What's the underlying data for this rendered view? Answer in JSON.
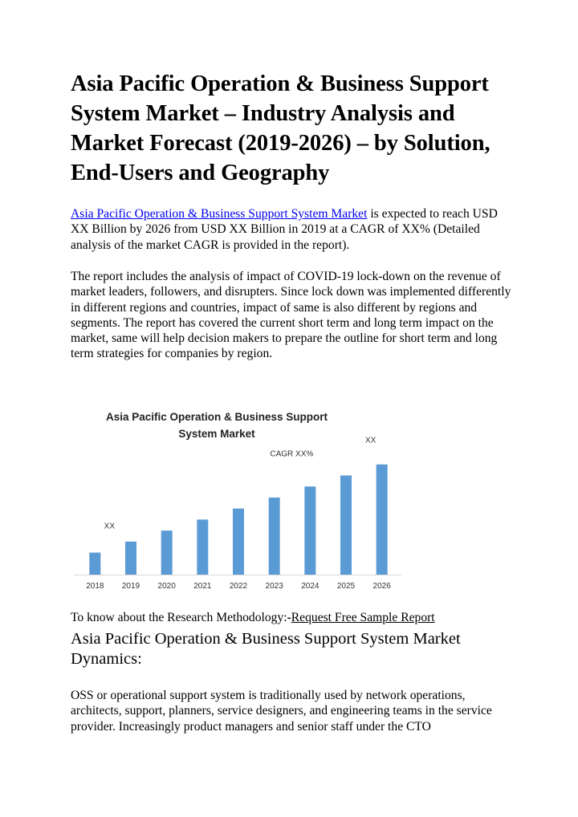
{
  "document": {
    "title": "Asia Pacific Operation & Business Support System Market – Industry Analysis and Market Forecast (2019-2026) – by Solution, End-Users and Geography",
    "intro": {
      "link_text": "Asia Pacific Operation & Business Support System Market",
      "text": " is expected to reach USD XX Billion by 2026 from USD XX Billion in 2019 at a CAGR of XX% (Detailed analysis of the market CAGR is provided in the report)."
    },
    "covid_paragraph": "The report includes the analysis of impact of COVID-19 lock-down on the revenue of market leaders, followers, and disrupters. Since lock down was implemented differently in different regions and countries, impact of same is also different by regions and segments. The report has covered the current short term and long term impact on the market, same will help decision makers to prepare the outline for short term and long term strategies for companies by region.",
    "methodology": {
      "prefix": "To know about the Research Methodology:",
      "dash": "-",
      "link_text": "Request Free Sample Report"
    },
    "dynamics_heading": "Asia Pacific Operation & Business Support System Market Dynamics:",
    "oss_paragraph": "OSS or operational support system is traditionally used by network operations, architects, support, planners, service designers, and engineering teams in the service provider. Increasingly product managers and senior staff under the CTO"
  },
  "chart_data": {
    "type": "bar",
    "title_lines": [
      "Asia Pacific Operation & Business Support",
      "System Market"
    ],
    "categories": [
      "2018",
      "2019",
      "2020",
      "2021",
      "2022",
      "2023",
      "2024",
      "2025",
      "2026"
    ],
    "values": [
      2,
      3,
      4,
      5,
      6,
      7,
      8,
      9,
      10
    ],
    "ylim": [
      0,
      11
    ],
    "annotations": {
      "start_label": "XX",
      "end_label": "XX",
      "cagr_label": "CAGR XX%"
    },
    "bar_color": "#5b9bd5",
    "grid": false,
    "legend": "none"
  }
}
